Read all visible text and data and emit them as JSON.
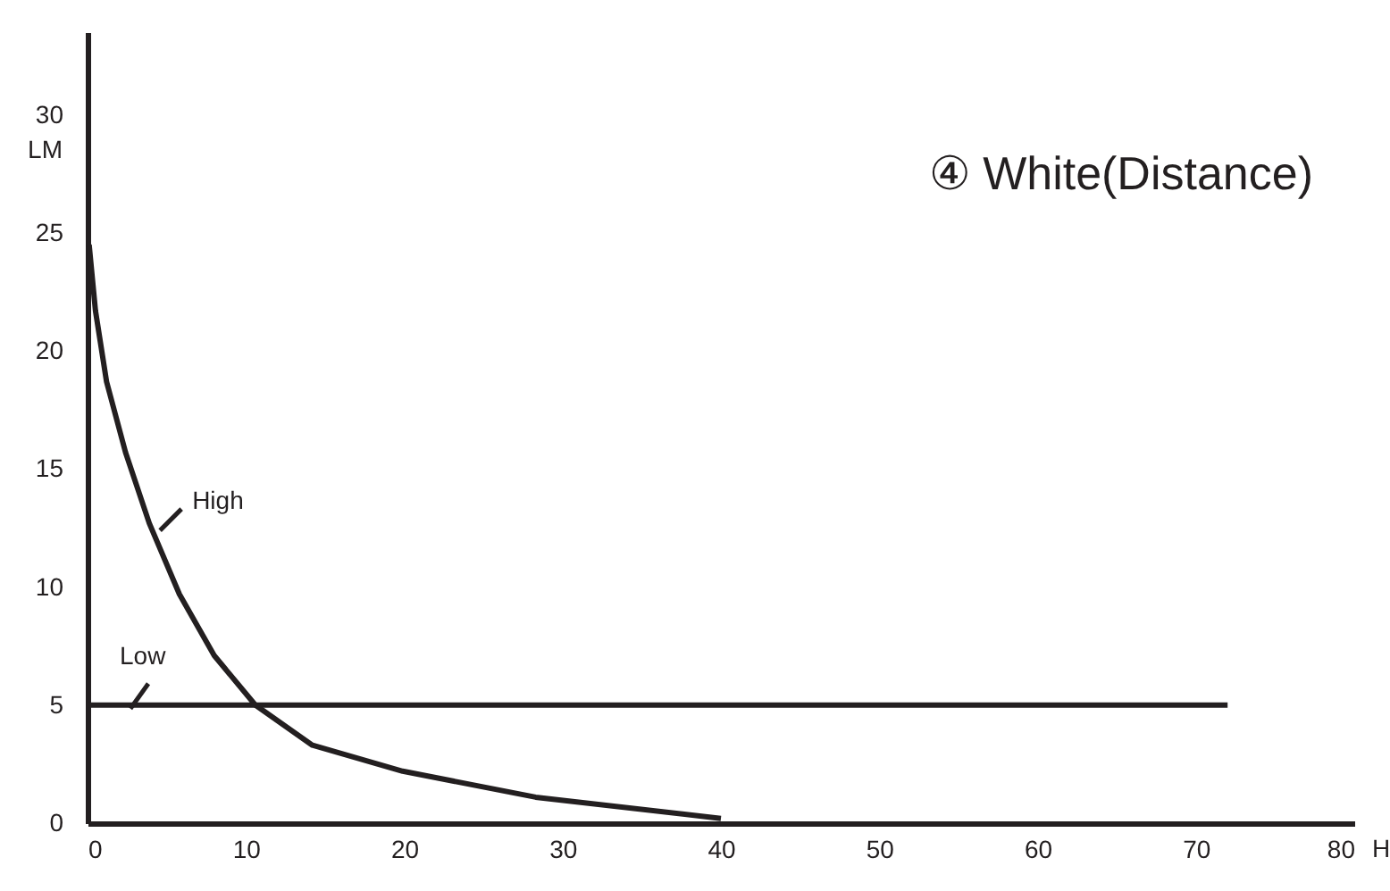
{
  "chart_data": {
    "type": "line",
    "title": "④ White(Distance)",
    "xlabel": "H",
    "ylabel": "LM",
    "xlim": [
      0,
      80
    ],
    "ylim": [
      0,
      33.5
    ],
    "xticks": [
      0,
      10,
      20,
      30,
      40,
      50,
      60,
      70,
      80
    ],
    "yticks": [
      0,
      5,
      10,
      15,
      20,
      25,
      30
    ],
    "grid": false,
    "marker": "none",
    "line_style": "solid",
    "series": [
      {
        "name": "High",
        "color": "#231f20",
        "x": [
          0.1,
          0.5,
          1.2,
          2.4,
          3.9,
          5.8,
          8.0,
          10.6,
          14.2,
          19.9,
          28.3,
          40
        ],
        "values": [
          24.5,
          21.7,
          18.7,
          15.7,
          12.7,
          9.7,
          7.1,
          5.0,
          3.3,
          2.2,
          1.1,
          0.2
        ]
      },
      {
        "name": "Low",
        "color": "#231f20",
        "x": [
          0,
          72
        ],
        "values": [
          5,
          5
        ]
      }
    ]
  }
}
